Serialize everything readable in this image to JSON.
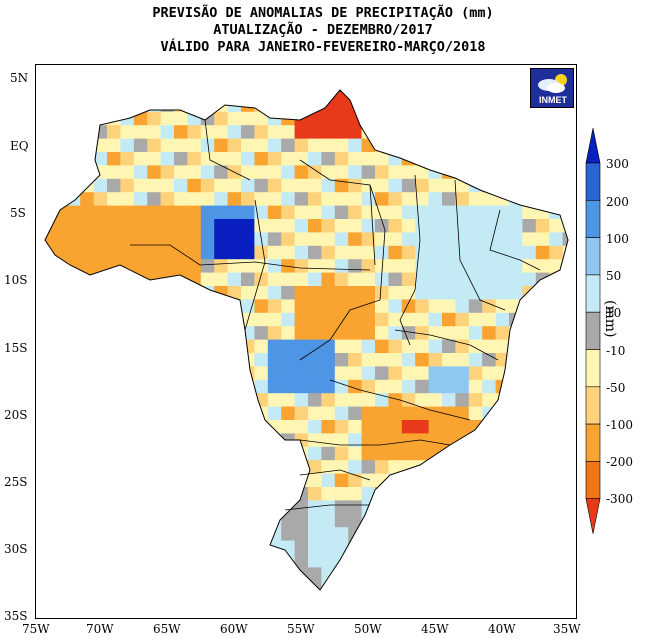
{
  "title_lines": [
    "PREVISÃO DE ANOMALIAS DE PRECIPITAÇÃO (mm)",
    "ATUALIZAÇÃO - DEZEMBRO/2017",
    "VÁLIDO PARA JANEIRO-FEVEREIRO-MARÇO/2018"
  ],
  "logo_text": "INMET",
  "y_ticks": [
    "5N",
    "EQ",
    "5S",
    "10S",
    "15S",
    "20S",
    "25S",
    "30S",
    "35S"
  ],
  "x_ticks": [
    "75W",
    "70W",
    "65W",
    "60W",
    "55W",
    "50W",
    "45W",
    "40W",
    "35W"
  ],
  "colorbar": {
    "unit": "(mm)",
    "labels": [
      "300",
      "200",
      "100",
      "50",
      "10",
      "-10",
      "-50",
      "-100",
      "-200",
      "-300"
    ],
    "colors": [
      "#0a1fbf",
      "#2b63d6",
      "#4f95e6",
      "#8fc7f0",
      "#c4ebf5",
      "#a9a9a9",
      "#fff6b3",
      "#fdd27a",
      "#f9a431",
      "#f47514",
      "#e8391a"
    ]
  },
  "map_colors": {
    "ocean": "#ffffff",
    "very_dry": "#f9a431",
    "dry": "#fdd27a",
    "near_normal_dry": "#fff6b3",
    "neutral": "#a9a9a9",
    "wet": "#c4ebf5",
    "wetter": "#8fc7f0",
    "very_wet": "#4f95e6",
    "extreme_wet": "#0a1fbf",
    "extreme_dry": "#e8391a"
  }
}
